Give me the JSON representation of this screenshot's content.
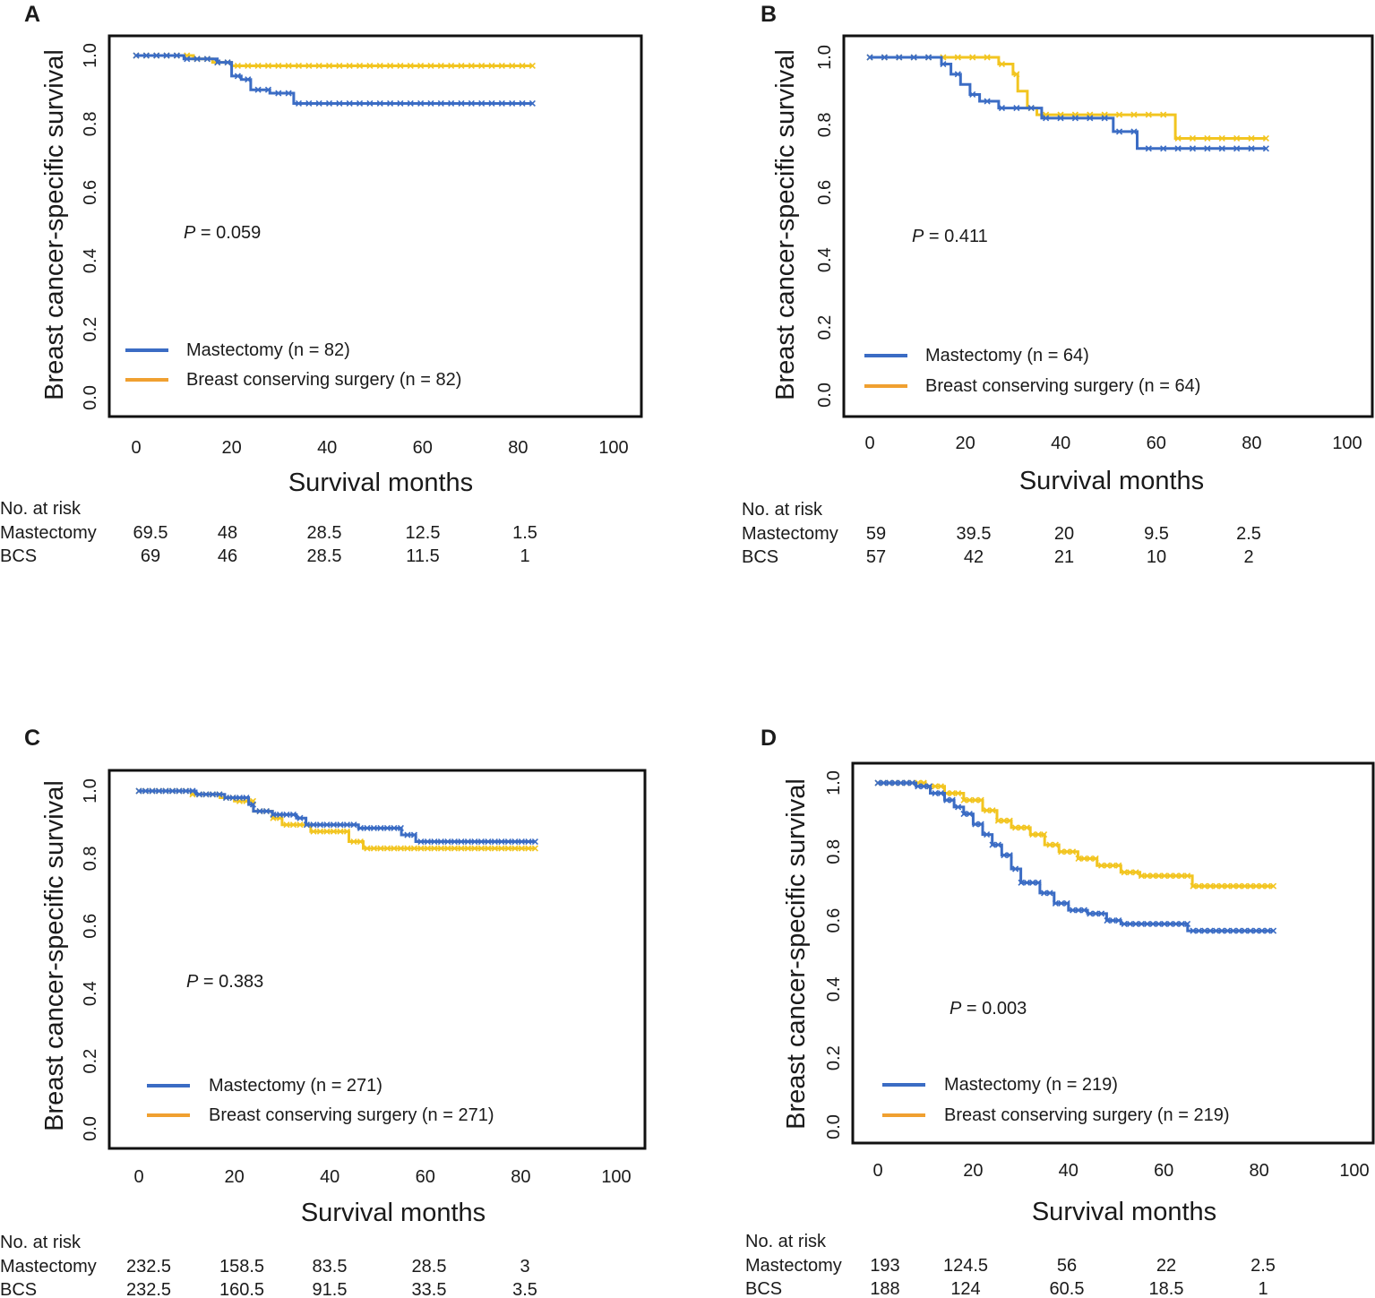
{
  "colors": {
    "mastectomy": "#3b6cc4",
    "bcs": "#f2c521",
    "legend_bcs": "#f0a030",
    "frame": "#111111"
  },
  "chart_data": [
    {
      "type": "line",
      "panel": "A",
      "ylabel": "Breast cancer-specific survival",
      "xlabel": "Survival months",
      "xlim": [
        0,
        100
      ],
      "ylim": [
        0,
        1
      ],
      "xticks": [
        "0",
        "20",
        "40",
        "60",
        "80",
        "100"
      ],
      "yticks": [
        "0.0",
        "0.2",
        "0.4",
        "0.6",
        "0.8",
        "1.0"
      ],
      "p_label": "P",
      "p_value": "= 0.059",
      "legend": [
        {
          "name": "Mastectomy (n = 82)",
          "color": "#3b6cc4"
        },
        {
          "name": "Breast conserving surgery (n = 82)",
          "color": "#f0a030"
        }
      ],
      "series": [
        {
          "name": "Mastectomy",
          "color": "#3b6cc4",
          "steps": [
            [
              0,
              1.0
            ],
            [
              10,
              0.99
            ],
            [
              17,
              0.98
            ],
            [
              20,
              0.94
            ],
            [
              22,
              0.93
            ],
            [
              24,
              0.9
            ],
            [
              28,
              0.89
            ],
            [
              33,
              0.86
            ],
            [
              83,
              0.86
            ]
          ],
          "censor_from": 0,
          "censor_to": 83,
          "censor_count": 40
        },
        {
          "name": "Breast conserving surgery",
          "color": "#f2c521",
          "steps": [
            [
              0,
              1.0
            ],
            [
              12,
              0.99
            ],
            [
              16,
              0.98
            ],
            [
              20,
              0.97
            ],
            [
              83,
              0.97
            ]
          ],
          "censor_from": 0,
          "censor_to": 83,
          "censor_count": 40
        }
      ],
      "risk_table": {
        "title": "No. at risk",
        "rows": [
          {
            "label": "Mastectomy",
            "values": [
              "69.5",
              "48",
              "28.5",
              "12.5",
              "1.5"
            ]
          },
          {
            "label": "BCS",
            "values": [
              "69",
              "46",
              "28.5",
              "11.5",
              "1"
            ]
          }
        ]
      }
    },
    {
      "type": "line",
      "panel": "B",
      "ylabel": "Breast cancer-specific survival",
      "xlabel": "Survival months",
      "xlim": [
        0,
        100
      ],
      "ylim": [
        0,
        1
      ],
      "xticks": [
        "0",
        "20",
        "40",
        "60",
        "80",
        "100"
      ],
      "yticks": [
        "0.0",
        "0.2",
        "0.4",
        "0.6",
        "0.8",
        "1.0"
      ],
      "p_label": "P",
      "p_value": "= 0.411",
      "legend": [
        {
          "name": "Mastectomy (n = 64)",
          "color": "#3b6cc4"
        },
        {
          "name": "Breast conserving surgery (n = 64)",
          "color": "#f0a030"
        }
      ],
      "series": [
        {
          "name": "Mastectomy",
          "color": "#3b6cc4",
          "steps": [
            [
              0,
              1.0
            ],
            [
              15,
              0.98
            ],
            [
              17,
              0.95
            ],
            [
              19,
              0.92
            ],
            [
              21,
              0.89
            ],
            [
              23,
              0.87
            ],
            [
              27,
              0.85
            ],
            [
              36,
              0.82
            ],
            [
              51,
              0.78
            ],
            [
              56,
              0.73
            ],
            [
              83,
              0.73
            ]
          ],
          "censor_from": 0,
          "censor_to": 83,
          "censor_count": 28
        },
        {
          "name": "Breast conserving surgery",
          "color": "#f2c521",
          "steps": [
            [
              0,
              1.0
            ],
            [
              27,
              0.98
            ],
            [
              30,
              0.95
            ],
            [
              31,
              0.9
            ],
            [
              33,
              0.85
            ],
            [
              35,
              0.83
            ],
            [
              64,
              0.76
            ],
            [
              83,
              0.76
            ]
          ],
          "censor_from": 0,
          "censor_to": 83,
          "censor_count": 28
        }
      ],
      "risk_table": {
        "title": "No. at risk",
        "rows": [
          {
            "label": "Mastectomy",
            "values": [
              "59",
              "39.5",
              "20",
              "9.5",
              "2.5"
            ]
          },
          {
            "label": "BCS",
            "values": [
              "57",
              "42",
              "21",
              "10",
              "2"
            ]
          }
        ]
      }
    },
    {
      "type": "line",
      "panel": "C",
      "ylabel": "Breast cancer-specific survival",
      "xlabel": "Survival months",
      "xlim": [
        0,
        100
      ],
      "ylim": [
        0,
        1
      ],
      "xticks": [
        "0",
        "20",
        "40",
        "60",
        "80",
        "100"
      ],
      "yticks": [
        "0.0",
        "0.2",
        "0.4",
        "0.6",
        "0.8",
        "1.0"
      ],
      "p_label": "P",
      "p_value": "= 0.383",
      "legend": [
        {
          "name": "Mastectomy (n = 271)",
          "color": "#3b6cc4"
        },
        {
          "name": "Breast conserving surgery (n = 271)",
          "color": "#f0a030"
        }
      ],
      "series": [
        {
          "name": "Mastectomy",
          "color": "#3b6cc4",
          "steps": [
            [
              0,
              1.0
            ],
            [
              12,
              0.99
            ],
            [
              18,
              0.98
            ],
            [
              23,
              0.96
            ],
            [
              24,
              0.94
            ],
            [
              28,
              0.93
            ],
            [
              33,
              0.92
            ],
            [
              35,
              0.9
            ],
            [
              46,
              0.89
            ],
            [
              55,
              0.87
            ],
            [
              58,
              0.85
            ],
            [
              83,
              0.85
            ]
          ],
          "censor_from": 0,
          "censor_to": 83,
          "censor_count": 60
        },
        {
          "name": "Breast conserving surgery",
          "color": "#f2c521",
          "steps": [
            [
              0,
              1.0
            ],
            [
              11,
              0.99
            ],
            [
              17,
              0.98
            ],
            [
              20,
              0.97
            ],
            [
              24,
              0.94
            ],
            [
              28,
              0.92
            ],
            [
              30,
              0.9
            ],
            [
              36,
              0.88
            ],
            [
              44,
              0.85
            ],
            [
              47,
              0.83
            ],
            [
              83,
              0.83
            ]
          ],
          "censor_from": 0,
          "censor_to": 83,
          "censor_count": 60
        }
      ],
      "risk_table": {
        "title": "No. at risk",
        "rows": [
          {
            "label": "Mastectomy",
            "values": [
              "232.5",
              "158.5",
              "83.5",
              "28.5",
              "3"
            ]
          },
          {
            "label": "BCS",
            "values": [
              "232.5",
              "160.5",
              "91.5",
              "33.5",
              "3.5"
            ]
          }
        ]
      }
    },
    {
      "type": "line",
      "panel": "D",
      "ylabel": "Breast cancer-specific survival",
      "xlabel": "Survival months",
      "xlim": [
        0,
        100
      ],
      "ylim": [
        0,
        1
      ],
      "xticks": [
        "0",
        "20",
        "40",
        "60",
        "80",
        "100"
      ],
      "yticks": [
        "0.0",
        "0.2",
        "0.4",
        "0.6",
        "0.8",
        "1.0"
      ],
      "p_label": "P",
      "p_value": "= 0.003",
      "legend": [
        {
          "name": "Mastectomy (n = 219)",
          "color": "#3b6cc4"
        },
        {
          "name": "Breast conserving surgery (n = 219)",
          "color": "#f0a030"
        }
      ],
      "series": [
        {
          "name": "Mastectomy",
          "color": "#3b6cc4",
          "steps": [
            [
              0,
              1.0
            ],
            [
              8,
              0.99
            ],
            [
              11,
              0.97
            ],
            [
              14,
              0.95
            ],
            [
              16,
              0.93
            ],
            [
              18,
              0.91
            ],
            [
              20,
              0.88
            ],
            [
              22,
              0.85
            ],
            [
              24,
              0.82
            ],
            [
              26,
              0.79
            ],
            [
              28,
              0.75
            ],
            [
              30,
              0.71
            ],
            [
              34,
              0.68
            ],
            [
              37,
              0.65
            ],
            [
              40,
              0.63
            ],
            [
              44,
              0.62
            ],
            [
              48,
              0.6
            ],
            [
              51,
              0.59
            ],
            [
              65,
              0.57
            ],
            [
              83,
              0.57
            ]
          ],
          "censor_from": 0,
          "censor_to": 83,
          "censor_count": 70
        },
        {
          "name": "Breast conserving surgery",
          "color": "#f2c521",
          "steps": [
            [
              0,
              1.0
            ],
            [
              10,
              0.99
            ],
            [
              14,
              0.97
            ],
            [
              18,
              0.95
            ],
            [
              22,
              0.92
            ],
            [
              25,
              0.89
            ],
            [
              28,
              0.87
            ],
            [
              32,
              0.85
            ],
            [
              35,
              0.82
            ],
            [
              38,
              0.8
            ],
            [
              42,
              0.78
            ],
            [
              46,
              0.76
            ],
            [
              51,
              0.74
            ],
            [
              55,
              0.73
            ],
            [
              66,
              0.7
            ],
            [
              83,
              0.7
            ]
          ],
          "censor_from": 0,
          "censor_to": 83,
          "censor_count": 70
        }
      ],
      "risk_table": {
        "title": "No. at risk",
        "rows": [
          {
            "label": "Mastectomy",
            "values": [
              "193",
              "124.5",
              "56",
              "22",
              "2.5"
            ]
          },
          {
            "label": "BCS",
            "values": [
              "188",
              "124",
              "60.5",
              "18.5",
              "1"
            ]
          }
        ]
      }
    }
  ]
}
